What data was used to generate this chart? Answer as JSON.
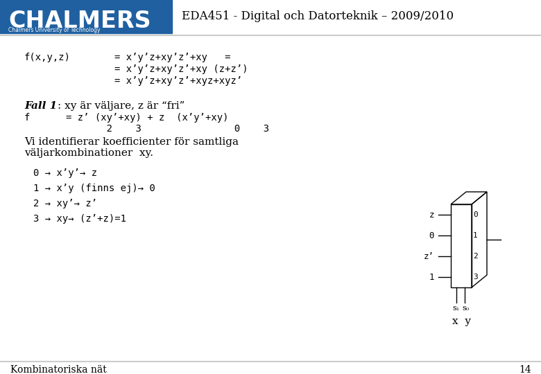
{
  "header_bg": "#2060a0",
  "header_text": "CHALMERS",
  "header_sub": "Chalmers University of Technology",
  "course_text": "EDA451 - Digital och Datorteknik – 2009/2010",
  "footer_text": "Kombinatoriska nät",
  "footer_page": "14",
  "bg_color": "#ffffff",
  "text_color": "#000000",
  "separator_color": "#cccccc",
  "mux_labels_left": [
    "z",
    "0",
    "z’",
    "1"
  ],
  "mux_labels_right": [
    "0",
    "1",
    "2",
    "3"
  ]
}
